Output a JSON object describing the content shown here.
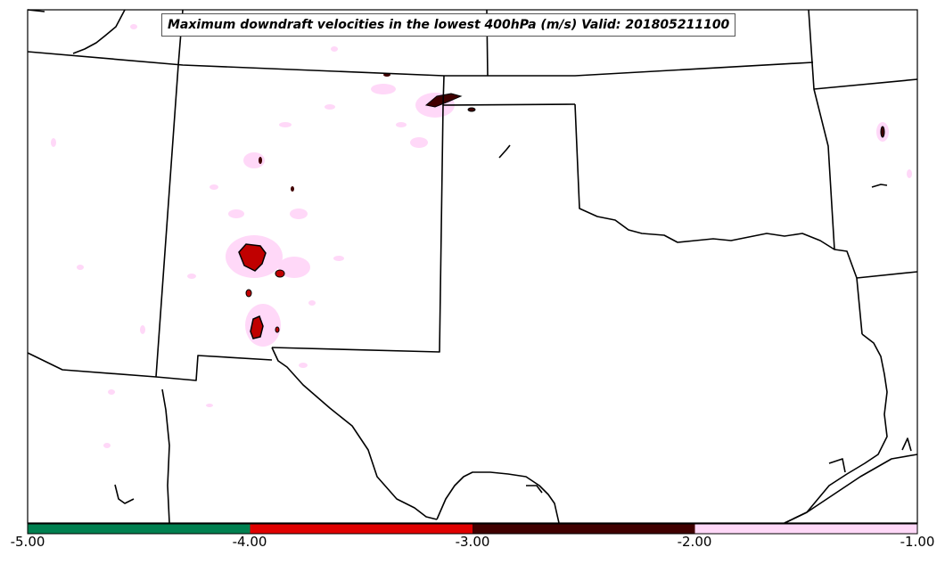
{
  "title": "Maximum downdraft velocities in the lowest 400hPa (m/s) Valid: 201805211100",
  "colorbar": {
    "ticks": [
      "-5.00",
      "-4.00",
      "-3.00",
      "-2.00",
      "-1.00"
    ],
    "segments": [
      {
        "from": -5.0,
        "to": -4.0,
        "color": "#008050"
      },
      {
        "from": -4.0,
        "to": -3.0,
        "color": "#e00000"
      },
      {
        "from": -3.0,
        "to": -2.0,
        "color": "#400000"
      },
      {
        "from": -2.0,
        "to": -1.0,
        "color": "#ffd8f8"
      }
    ]
  },
  "colors": {
    "boundary": "#000000",
    "frame": "#000000",
    "background": "#ffffff"
  }
}
